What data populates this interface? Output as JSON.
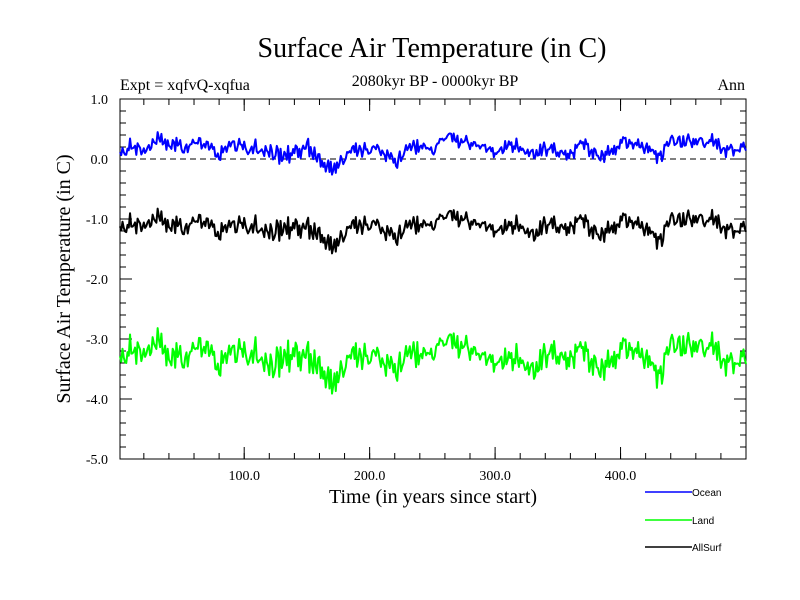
{
  "chart_data": {
    "type": "line",
    "title": "Surface Air Temperature (in C)",
    "subtitle": "2080kyr BP - 0000kyr BP",
    "experiment_label": "Expt = xqfvQ-xqfua",
    "season_label": "Ann",
    "xlabel": "Time (in years since start)",
    "ylabel": "Surface Air Temperature (in C)",
    "xlim": [
      1,
      500
    ],
    "ylim": [
      -5.0,
      1.0
    ],
    "x_ticks": [
      100,
      200,
      300,
      400
    ],
    "x_tick_labels": [
      "100.0",
      "200.0",
      "300.0",
      "400.0"
    ],
    "y_ticks": [
      1.0,
      0.0,
      -1.0,
      -2.0,
      -3.0,
      -4.0,
      -5.0
    ],
    "y_tick_labels": [
      "1.0",
      "0.0",
      "-1.0",
      "-2.0",
      "-3.0",
      "-4.0",
      "-5.0"
    ],
    "reference_line": 0.0,
    "legend_position": "bottom-right, below plot",
    "series": [
      {
        "name": "Ocean",
        "color": "#0000ff",
        "mean": 0.1,
        "values_every_10_years": [
          0.05,
          0.2,
          0.1,
          0.35,
          0.25,
          0.15,
          0.3,
          0.2,
          0.1,
          0.25,
          0.15,
          0.2,
          0.1,
          0.05,
          0.15,
          0.2,
          -0.1,
          -0.2,
          0.1,
          0.2,
          0.15,
          0.1,
          -0.05,
          0.15,
          0.25,
          0.1,
          0.45,
          0.25,
          0.3,
          0.2,
          0.1,
          0.25,
          0.15,
          0.1,
          0.2,
          0.1,
          0.15,
          0.2,
          0.1,
          0.05,
          0.25,
          0.3,
          0.2,
          0.05,
          0.35,
          0.3,
          0.25,
          0.3,
          0.2,
          0.15
        ]
      },
      {
        "name": "Land",
        "color": "#00ff00",
        "mean": -3.3,
        "values_every_10_years": [
          -3.4,
          -3.2,
          -3.3,
          -3.0,
          -3.3,
          -3.4,
          -3.1,
          -3.2,
          -3.4,
          -3.2,
          -3.3,
          -3.2,
          -3.5,
          -3.3,
          -3.2,
          -3.3,
          -3.6,
          -3.8,
          -3.3,
          -3.2,
          -3.3,
          -3.4,
          -3.5,
          -3.3,
          -3.2,
          -3.3,
          -2.9,
          -3.2,
          -3.1,
          -3.3,
          -3.4,
          -3.3,
          -3.4,
          -3.5,
          -3.2,
          -3.3,
          -3.2,
          -3.3,
          -3.4,
          -3.5,
          -3.2,
          -3.1,
          -3.3,
          -3.6,
          -3.0,
          -3.1,
          -3.2,
          -3.1,
          -3.3,
          -3.4
        ]
      },
      {
        "name": "AllSurf",
        "color": "#000000",
        "mean": -1.15,
        "values_every_10_years": [
          -1.2,
          -1.1,
          -1.15,
          -0.95,
          -1.1,
          -1.2,
          -1.0,
          -1.1,
          -1.2,
          -1.1,
          -1.15,
          -1.1,
          -1.25,
          -1.15,
          -1.1,
          -1.15,
          -1.35,
          -1.5,
          -1.15,
          -1.05,
          -1.1,
          -1.2,
          -1.3,
          -1.15,
          -1.05,
          -1.15,
          -0.85,
          -1.05,
          -1.0,
          -1.1,
          -1.2,
          -1.1,
          -1.15,
          -1.25,
          -1.05,
          -1.15,
          -1.05,
          -1.1,
          -1.2,
          -1.25,
          -1.05,
          -1.0,
          -1.15,
          -1.35,
          -0.95,
          -1.0,
          -1.05,
          -1.0,
          -1.1,
          -1.2
        ]
      }
    ]
  }
}
